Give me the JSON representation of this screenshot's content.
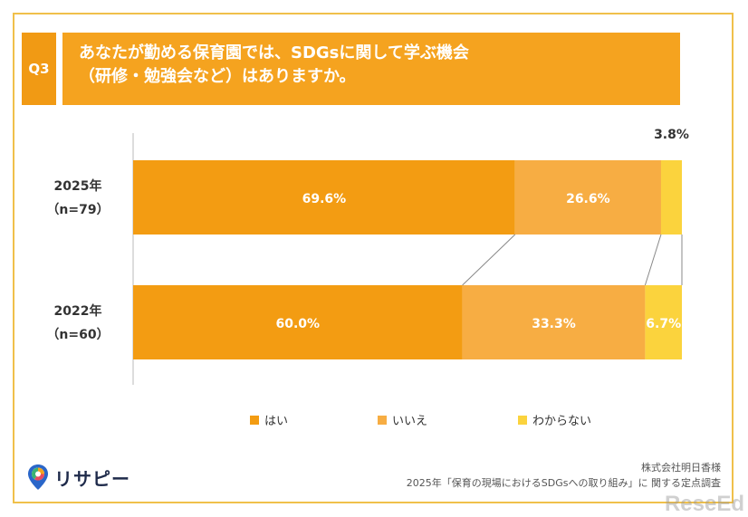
{
  "question": {
    "number": "Q3",
    "title_line1": "あなたが勤める保育園では、SDGsに関して学ぶ機会",
    "title_line2": "（研修・勉強会など）はありますか。"
  },
  "colors": {
    "frame": "#f0c04a",
    "badge": "#f19a14",
    "title_bg": "#f5a31f",
    "yes": "#f39c12",
    "no": "#f7ad43",
    "unknown": "#fbd33d"
  },
  "chart_data": {
    "type": "bar",
    "orientation": "horizontal-stacked-100",
    "categories": [
      {
        "year": "2025年",
        "n": "（n=79）"
      },
      {
        "year": "2022年",
        "n": "（n=60）"
      }
    ],
    "series": [
      {
        "name": "はい",
        "values": [
          69.6,
          60.0
        ],
        "labels": [
          "69.6%",
          "60.0%"
        ]
      },
      {
        "name": "いいえ",
        "values": [
          26.6,
          33.3
        ],
        "labels": [
          "26.6%",
          "33.3%"
        ]
      },
      {
        "name": "わからない",
        "values": [
          3.8,
          6.7
        ],
        "labels": [
          "3.8%",
          "6.7%"
        ]
      }
    ],
    "xlim": [
      0,
      100
    ],
    "legend_position": "bottom",
    "grid": false
  },
  "logo": {
    "text": "リサピー"
  },
  "source": {
    "line1": "株式会社明日香様",
    "line2": "2025年「保育の現場におけるSDGsへの取り組み」に 関する定点調査"
  },
  "watermark": "ReseEd"
}
